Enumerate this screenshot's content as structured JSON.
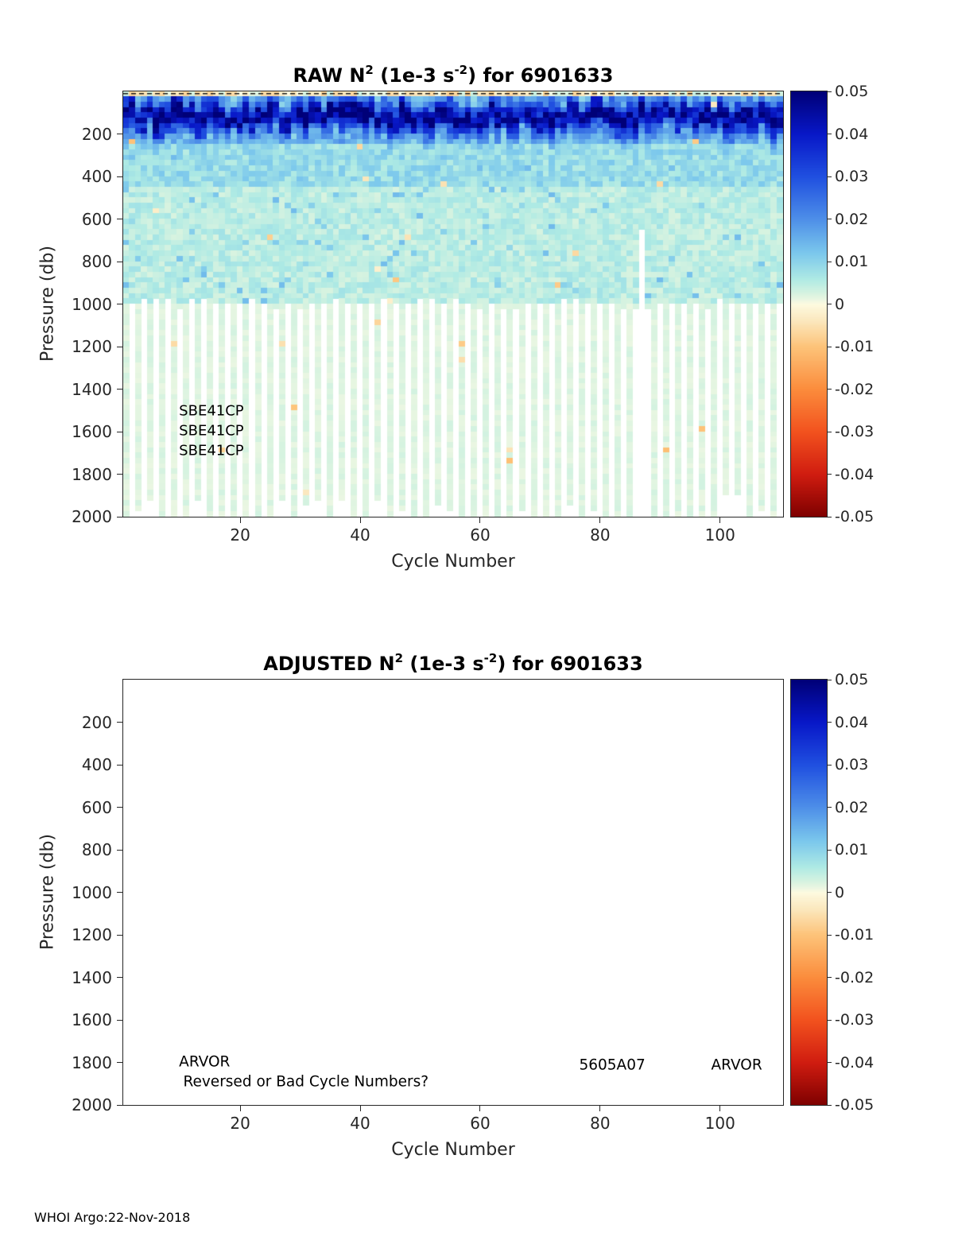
{
  "page": {
    "footer_text": "WHOI Argo:22-Nov-2018",
    "background": "#ffffff"
  },
  "colors": {
    "axis": "#262626",
    "text": "#000000"
  },
  "colormap": {
    "stops": [
      {
        "v": 0.05,
        "c": "#000078"
      },
      {
        "v": 0.04,
        "c": "#0818c8"
      },
      {
        "v": 0.03,
        "c": "#2050e0"
      },
      {
        "v": 0.02,
        "c": "#4e8fe8"
      },
      {
        "v": 0.012,
        "c": "#7cc8ec"
      },
      {
        "v": 0.006,
        "c": "#aeeae4"
      },
      {
        "v": 0.0025,
        "c": "#d8f3e0"
      },
      {
        "v": 0.001,
        "c": "#edf7e2"
      },
      {
        "v": 0.0,
        "c": "#fdfae0"
      },
      {
        "v": -0.004,
        "c": "#fbe7bc"
      },
      {
        "v": -0.01,
        "c": "#fdc379"
      },
      {
        "v": -0.02,
        "c": "#fb8c3c"
      },
      {
        "v": -0.03,
        "c": "#f2521e"
      },
      {
        "v": -0.04,
        "c": "#d01c10"
      },
      {
        "v": -0.05,
        "c": "#7e0000"
      }
    ]
  },
  "chart_data": [
    {
      "type": "heatmap",
      "panel": "raw",
      "float_id": "6901633",
      "title_parts": {
        "p1": "RAW N",
        "sup1": "2",
        "p2": " (1e-3 s",
        "sup2": "-2",
        "p3": ") for 6901633"
      },
      "xlabel": "Cycle Number",
      "ylabel": "Pressure (db)",
      "x_range": [
        1,
        110
      ],
      "y_range_db": [
        0,
        2000
      ],
      "y_axis_reversed": true,
      "xticks": [
        {
          "v": 20,
          "label": "20"
        },
        {
          "v": 40,
          "label": "40"
        },
        {
          "v": 60,
          "label": "60"
        },
        {
          "v": 80,
          "label": "80"
        },
        {
          "v": 100,
          "label": "100"
        }
      ],
      "yticks": [
        {
          "v": 200,
          "label": "200"
        },
        {
          "v": 400,
          "label": "400"
        },
        {
          "v": 600,
          "label": "600"
        },
        {
          "v": 800,
          "label": "800"
        },
        {
          "v": 1000,
          "label": "1000"
        },
        {
          "v": 1200,
          "label": "1200"
        },
        {
          "v": 1400,
          "label": "1400"
        },
        {
          "v": 1600,
          "label": "1600"
        },
        {
          "v": 1800,
          "label": "1800"
        },
        {
          "v": 2000,
          "label": "2000"
        }
      ],
      "colorbar_ticks": [
        {
          "v": 0.05,
          "label": "0.05"
        },
        {
          "v": 0.04,
          "label": "0.04"
        },
        {
          "v": 0.03,
          "label": "0.03"
        },
        {
          "v": 0.02,
          "label": "0.02"
        },
        {
          "v": 0.01,
          "label": "0.01"
        },
        {
          "v": 0,
          "label": "0"
        },
        {
          "v": -0.01,
          "label": "-0.01"
        },
        {
          "v": -0.02,
          "label": "-0.02"
        },
        {
          "v": -0.03,
          "label": "-0.03"
        },
        {
          "v": -0.04,
          "label": "-0.04"
        },
        {
          "v": -0.05,
          "label": "-0.05"
        }
      ],
      "annotations": [
        {
          "text": "SBE41CP",
          "x_cycle": 9.8,
          "y_db": 1505
        },
        {
          "text": "SBE41CP",
          "x_cycle": 9.8,
          "y_db": 1600
        },
        {
          "text": "SBE41CP",
          "x_cycle": 9.8,
          "y_db": 1695
        }
      ],
      "dashed_line_y_db": 10,
      "field_model": {
        "seed": 20181122,
        "n_cycles": 110,
        "max_depth_db": 2000,
        "depth_step_db": 25,
        "surface_mixed_top_db": 30,
        "pycnocline_band": {
          "center_db": 120,
          "center_jitter_db": 80,
          "half_width_db": 45,
          "peak_value": 0.048
        },
        "upper_base": [
          0.008,
          0.018
        ],
        "mid_base": [
          0.005,
          0.012
        ],
        "lower_base": [
          0.0025,
          0.0075
        ],
        "deep_base": [
          0.0012,
          0.003
        ],
        "deep_gap_start_db": 980,
        "deep_data_parity": "odd_cycles_have_deep_data",
        "missing_column": {
          "cycle": 87,
          "from_depth_db": 660
        },
        "negative_speckle_prob": 0.004
      }
    },
    {
      "type": "heatmap",
      "panel": "adjusted",
      "float_id": "6901633",
      "empty": true,
      "title_parts": {
        "p1": "ADJUSTED N",
        "sup1": "2",
        "p2": " (1e-3 s",
        "sup2": "-2",
        "p3": ") for 6901633"
      },
      "xlabel": "Cycle Number",
      "ylabel": "Pressure (db)",
      "x_range": [
        1,
        110
      ],
      "y_range_db": [
        0,
        2000
      ],
      "y_axis_reversed": true,
      "xticks": [
        {
          "v": 20,
          "label": "20"
        },
        {
          "v": 40,
          "label": "40"
        },
        {
          "v": 60,
          "label": "60"
        },
        {
          "v": 80,
          "label": "80"
        },
        {
          "v": 100,
          "label": "100"
        }
      ],
      "yticks": [
        {
          "v": 200,
          "label": "200"
        },
        {
          "v": 400,
          "label": "400"
        },
        {
          "v": 600,
          "label": "600"
        },
        {
          "v": 800,
          "label": "800"
        },
        {
          "v": 1000,
          "label": "1000"
        },
        {
          "v": 1200,
          "label": "1200"
        },
        {
          "v": 1400,
          "label": "1400"
        },
        {
          "v": 1600,
          "label": "1600"
        },
        {
          "v": 1800,
          "label": "1800"
        },
        {
          "v": 2000,
          "label": "2000"
        }
      ],
      "colorbar_ticks": [
        {
          "v": 0.05,
          "label": "0.05"
        },
        {
          "v": 0.04,
          "label": "0.04"
        },
        {
          "v": 0.03,
          "label": "0.03"
        },
        {
          "v": 0.02,
          "label": "0.02"
        },
        {
          "v": 0.01,
          "label": "0.01"
        },
        {
          "v": 0,
          "label": "0"
        },
        {
          "v": -0.01,
          "label": "-0.01"
        },
        {
          "v": -0.02,
          "label": "-0.02"
        },
        {
          "v": -0.03,
          "label": "-0.03"
        },
        {
          "v": -0.04,
          "label": "-0.04"
        },
        {
          "v": -0.05,
          "label": "-0.05"
        }
      ],
      "annotations": [
        {
          "text": "ARVOR",
          "x_cycle": 9.8,
          "y_db": 1800
        },
        {
          "text": "Reversed or Bad Cycle Numbers?",
          "x_cycle": 10.5,
          "y_db": 1897
        },
        {
          "text": "5605A07",
          "x_cycle": 76.5,
          "y_db": 1815
        },
        {
          "text": "ARVOR",
          "x_cycle": 98.5,
          "y_db": 1815
        }
      ],
      "dashed_line_y_db": null,
      "field_model": null
    }
  ]
}
